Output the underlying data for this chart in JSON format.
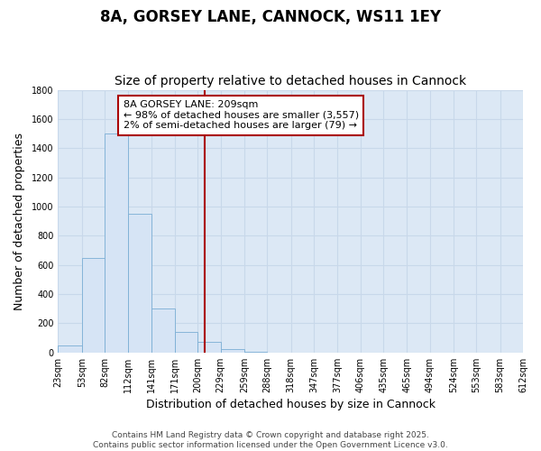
{
  "title": "8A, GORSEY LANE, CANNOCK, WS11 1EY",
  "subtitle": "Size of property relative to detached houses in Cannock",
  "xlabel": "Distribution of detached houses by size in Cannock",
  "ylabel": "Number of detached properties",
  "bar_color": "#d6e4f5",
  "bar_edge_color": "#7aadd4",
  "background_color": "#dce8f5",
  "grid_color": "#c8d8ea",
  "bin_edges": [
    23,
    53,
    82,
    112,
    141,
    171,
    200,
    229,
    259,
    288,
    318,
    347,
    377,
    406,
    435,
    465,
    494,
    524,
    553,
    583,
    612
  ],
  "bin_labels": [
    "23sqm",
    "53sqm",
    "82sqm",
    "112sqm",
    "141sqm",
    "171sqm",
    "200sqm",
    "229sqm",
    "259sqm",
    "288sqm",
    "318sqm",
    "347sqm",
    "377sqm",
    "406sqm",
    "435sqm",
    "465sqm",
    "494sqm",
    "524sqm",
    "553sqm",
    "583sqm",
    "612sqm"
  ],
  "bar_heights": [
    50,
    650,
    1500,
    950,
    300,
    140,
    70,
    25,
    5,
    0,
    0,
    0,
    0,
    0,
    0,
    0,
    0,
    0,
    0,
    0
  ],
  "vline_x": 209,
  "vline_color": "#aa0000",
  "annotation_title": "8A GORSEY LANE: 209sqm",
  "annotation_line1": "← 98% of detached houses are smaller (3,557)",
  "annotation_line2": "2% of semi-detached houses are larger (79) →",
  "ylim": [
    0,
    1800
  ],
  "yticks": [
    0,
    200,
    400,
    600,
    800,
    1000,
    1200,
    1400,
    1600,
    1800
  ],
  "footer1": "Contains HM Land Registry data © Crown copyright and database right 2025.",
  "footer2": "Contains public sector information licensed under the Open Government Licence v3.0.",
  "title_fontsize": 12,
  "subtitle_fontsize": 10,
  "label_fontsize": 9,
  "tick_fontsize": 7,
  "annotation_fontsize": 8,
  "footer_fontsize": 6.5
}
